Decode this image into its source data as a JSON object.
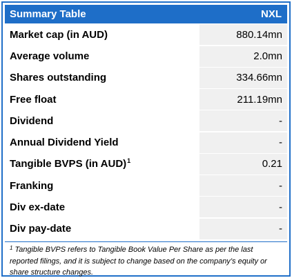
{
  "header": {
    "title": "Summary Table",
    "ticker": "NXL"
  },
  "rows": [
    {
      "label": "Market cap (in AUD)",
      "value": "880.14mn"
    },
    {
      "label": "Average volume",
      "value": "2.0mn"
    },
    {
      "label": "Shares outstanding",
      "value": "334.66mn"
    },
    {
      "label": "Free float",
      "value": "211.19mn"
    },
    {
      "label": "Dividend",
      "value": "-"
    },
    {
      "label": "Annual Dividend Yield",
      "value": "-"
    },
    {
      "label": "Tangible BVPS (in AUD)",
      "marker": "1",
      "value": "0.21"
    },
    {
      "label": "Franking",
      "value": "-"
    },
    {
      "label": "Div ex-date",
      "value": "-"
    },
    {
      "label": "Div pay-date",
      "value": "-"
    }
  ],
  "footnote": {
    "marker": "1",
    "text": " Tangible BVPS refers to Tangible Book Value Per Share as per the last reported filings, and it is subject to change based on the company’s equity or share structure changes."
  },
  "colors": {
    "accent": "#1e6ec8",
    "value_cell": "#f0f0f0"
  }
}
